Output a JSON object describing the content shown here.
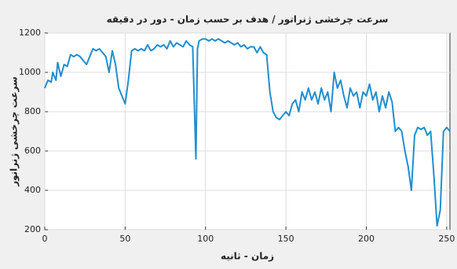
{
  "chart_data": {
    "type": "line",
    "title": "سرعت چرخشی ژنراتور / هدف بر حسب زمان - دور در دقیقه",
    "xlabel": "زمان - ثانیه",
    "ylabel": "سرعت چرخشی ژنراتور",
    "x": [
      0,
      2,
      4,
      5,
      7,
      8,
      10,
      12,
      14,
      16,
      18,
      20,
      22,
      24,
      26,
      28,
      30,
      32,
      34,
      36,
      38,
      40,
      42,
      44,
      46,
      48,
      50,
      52,
      54,
      56,
      58,
      60,
      62,
      64,
      66,
      68,
      70,
      72,
      74,
      76,
      78,
      80,
      82,
      84,
      86,
      88,
      90,
      92,
      94,
      95,
      96,
      98,
      100,
      102,
      104,
      106,
      108,
      110,
      112,
      114,
      116,
      118,
      120,
      122,
      124,
      126,
      128,
      130,
      132,
      134,
      136,
      138,
      140,
      142,
      144,
      146,
      148,
      150,
      152,
      154,
      156,
      158,
      160,
      162,
      164,
      166,
      168,
      170,
      172,
      174,
      176,
      178,
      180,
      182,
      184,
      186,
      188,
      190,
      192,
      194,
      196,
      198,
      200,
      202,
      204,
      206,
      208,
      210,
      212,
      214,
      216,
      218,
      220,
      222,
      224,
      226,
      228,
      230,
      232,
      234,
      236,
      238,
      240,
      242,
      244,
      246,
      248,
      250,
      252
    ],
    "series": [
      {
        "name": "سرعت چرخشی",
        "color": "#1f8fd0",
        "values": [
          920,
          960,
          950,
          1000,
          960,
          1050,
          980,
          1040,
          1030,
          1090,
          1080,
          1090,
          1080,
          1060,
          1040,
          1080,
          1120,
          1110,
          1120,
          1100,
          1080,
          1000,
          1110,
          1040,
          920,
          880,
          840,
          960,
          1110,
          1120,
          1110,
          1120,
          1110,
          1140,
          1110,
          1120,
          1140,
          1130,
          1140,
          1120,
          1160,
          1130,
          1150,
          1140,
          1130,
          1160,
          1140,
          1130,
          560,
          1120,
          1160,
          1170,
          1170,
          1160,
          1170,
          1160,
          1170,
          1160,
          1150,
          1160,
          1150,
          1140,
          1150,
          1130,
          1140,
          1120,
          1130,
          1130,
          1100,
          1130,
          1100,
          1090,
          900,
          800,
          770,
          760,
          780,
          800,
          780,
          840,
          860,
          800,
          900,
          860,
          920,
          860,
          900,
          840,
          920,
          860,
          900,
          800,
          1000,
          920,
          960,
          880,
          820,
          920,
          880,
          900,
          820,
          900,
          880,
          940,
          860,
          900,
          800,
          880,
          820,
          900,
          850,
          700,
          720,
          700,
          600,
          520,
          400,
          680,
          720,
          710,
          720,
          680,
          700,
          480,
          220,
          300,
          700,
          720,
          700
        ]
      }
    ],
    "xlim": [
      0,
      252
    ],
    "ylim": [
      200,
      1200
    ],
    "xticks": [
      0,
      50,
      100,
      150,
      200,
      250
    ],
    "yticks": [
      200,
      400,
      600,
      800,
      1000,
      1200
    ],
    "grid": true
  }
}
